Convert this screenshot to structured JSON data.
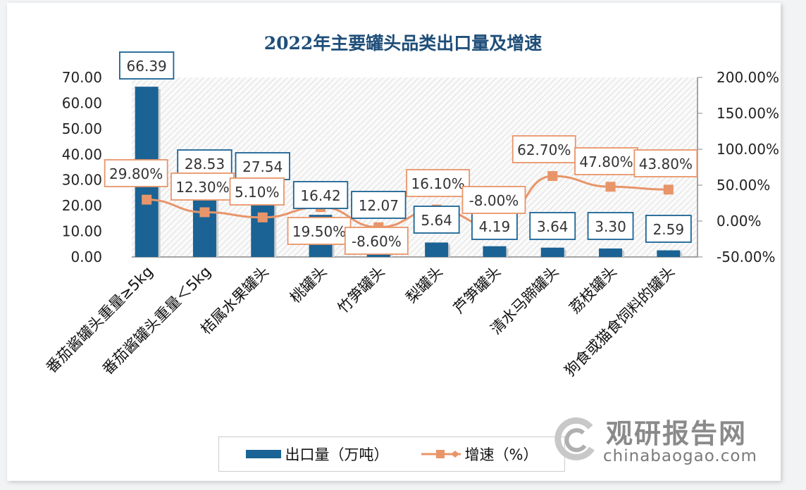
{
  "chart_data": {
    "type": "bar+line",
    "title": "2022年主要罐头品类出口量及增速",
    "categories": [
      "番茄酱罐头重量≥5kg",
      "番茄酱罐头重量＜5kg",
      "桔属水果罐头",
      "桃罐头",
      "竹笋罐头",
      "梨罐头",
      "芦笋罐头",
      "清水马蹄罐头",
      "荔枝罐头",
      "狗食或猫食饲料的罐头"
    ],
    "series": [
      {
        "name": "出口量（万吨）",
        "type": "bar",
        "axis": "left",
        "color": "#1a6394",
        "values": [
          66.39,
          28.53,
          27.54,
          16.42,
          12.07,
          5.64,
          4.19,
          3.64,
          3.3,
          2.59
        ],
        "labels": [
          "66.39",
          "28.53",
          "27.54",
          "16.42",
          "12.07",
          "5.64",
          "4.19",
          "3.64",
          "3.30",
          "2.59"
        ]
      },
      {
        "name": "增速（%）",
        "type": "line",
        "axis": "right",
        "color": "#e8956a",
        "values": [
          29.8,
          12.3,
          5.1,
          19.5,
          -8.6,
          16.1,
          -8.0,
          62.7,
          47.8,
          43.8
        ],
        "labels": [
          "29.80%",
          "12.30%",
          "5.10%",
          "19.50%",
          "-8.60%",
          "16.10%",
          "-8.00%",
          "62.70%",
          "47.80%",
          "43.80%"
        ]
      }
    ],
    "left_axis": {
      "ylim": [
        0,
        70
      ],
      "ticks": [
        "0.00",
        "10.00",
        "20.00",
        "30.00",
        "40.00",
        "50.00",
        "60.00",
        "70.00"
      ]
    },
    "right_axis": {
      "ylim": [
        -50,
        200
      ],
      "ticks": [
        "-50.00%",
        "0.00%",
        "50.00%",
        "100.00%",
        "150.00%",
        "200.00%"
      ]
    },
    "grid": false,
    "legend_position": "bottom"
  },
  "watermark": {
    "cn": "观研报告网",
    "en": "chinabaogao.com"
  }
}
